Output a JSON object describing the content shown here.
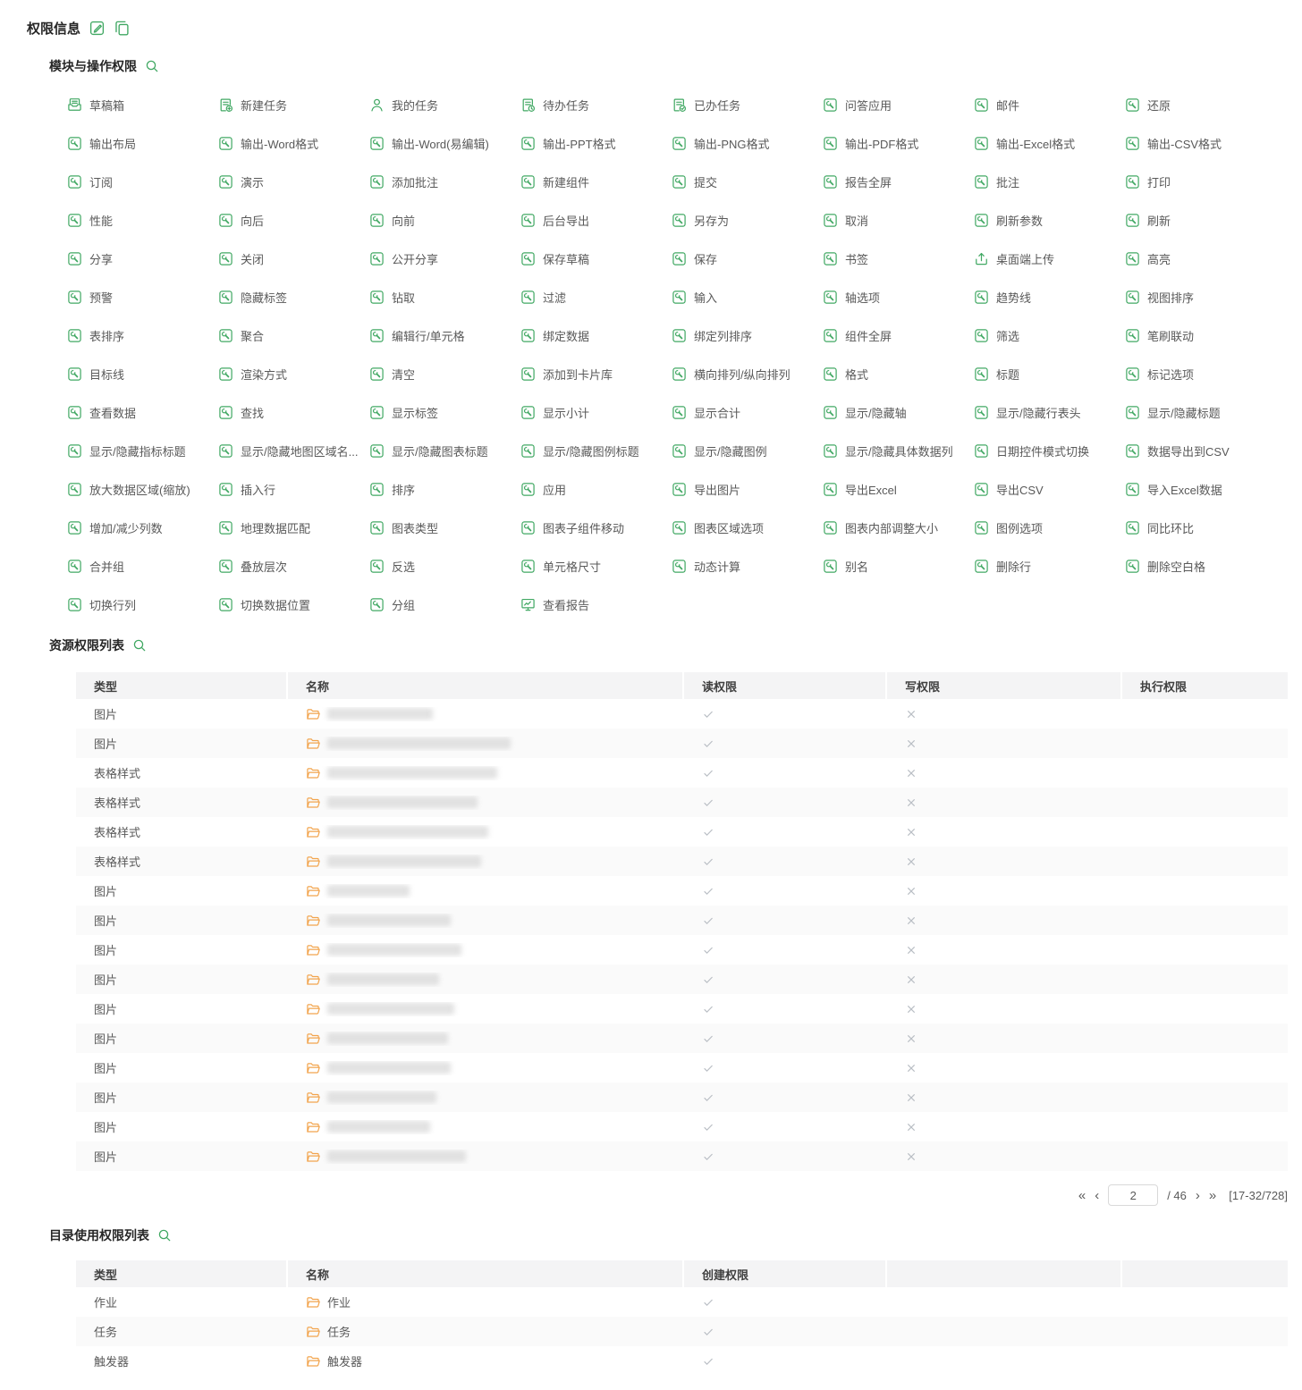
{
  "page": {
    "title": "权限信息"
  },
  "header_actions": {
    "edit": "edit-icon",
    "copy": "copy-icon"
  },
  "module_section": {
    "title": "模块与操作权限",
    "items": [
      {
        "label": "草稿箱",
        "icon": "draft-icon"
      },
      {
        "label": "新建任务",
        "icon": "new-task-icon"
      },
      {
        "label": "我的任务",
        "icon": "user-icon"
      },
      {
        "label": "待办任务",
        "icon": "todo-task-icon"
      },
      {
        "label": "已办任务",
        "icon": "done-task-icon"
      },
      {
        "label": "问答应用",
        "icon": "wrench-icon"
      },
      {
        "label": "邮件",
        "icon": "wrench-icon"
      },
      {
        "label": "还原",
        "icon": "wrench-icon"
      },
      {
        "label": "输出布局",
        "icon": "wrench-icon"
      },
      {
        "label": "输出-Word格式",
        "icon": "wrench-icon"
      },
      {
        "label": "输出-Word(易编辑)",
        "icon": "wrench-icon"
      },
      {
        "label": "输出-PPT格式",
        "icon": "wrench-icon"
      },
      {
        "label": "输出-PNG格式",
        "icon": "wrench-icon"
      },
      {
        "label": "输出-PDF格式",
        "icon": "wrench-icon"
      },
      {
        "label": "输出-Excel格式",
        "icon": "wrench-icon"
      },
      {
        "label": "输出-CSV格式",
        "icon": "wrench-icon"
      },
      {
        "label": "订阅",
        "icon": "wrench-icon"
      },
      {
        "label": "演示",
        "icon": "wrench-icon"
      },
      {
        "label": "添加批注",
        "icon": "wrench-icon"
      },
      {
        "label": "新建组件",
        "icon": "wrench-icon"
      },
      {
        "label": "提交",
        "icon": "wrench-icon"
      },
      {
        "label": "报告全屏",
        "icon": "wrench-icon"
      },
      {
        "label": "批注",
        "icon": "wrench-icon"
      },
      {
        "label": "打印",
        "icon": "wrench-icon"
      },
      {
        "label": "性能",
        "icon": "wrench-icon"
      },
      {
        "label": "向后",
        "icon": "wrench-icon"
      },
      {
        "label": "向前",
        "icon": "wrench-icon"
      },
      {
        "label": "后台导出",
        "icon": "wrench-icon"
      },
      {
        "label": "另存为",
        "icon": "wrench-icon"
      },
      {
        "label": "取消",
        "icon": "wrench-icon"
      },
      {
        "label": "刷新参数",
        "icon": "wrench-icon"
      },
      {
        "label": "刷新",
        "icon": "wrench-icon"
      },
      {
        "label": "分享",
        "icon": "wrench-icon"
      },
      {
        "label": "关闭",
        "icon": "wrench-icon"
      },
      {
        "label": "公开分享",
        "icon": "wrench-icon"
      },
      {
        "label": "保存草稿",
        "icon": "wrench-icon"
      },
      {
        "label": "保存",
        "icon": "wrench-icon"
      },
      {
        "label": "书签",
        "icon": "wrench-icon"
      },
      {
        "label": "桌面端上传",
        "icon": "upload-icon"
      },
      {
        "label": "高亮",
        "icon": "wrench-icon"
      },
      {
        "label": "预警",
        "icon": "wrench-icon"
      },
      {
        "label": "隐藏标签",
        "icon": "wrench-icon"
      },
      {
        "label": "钻取",
        "icon": "wrench-icon"
      },
      {
        "label": "过滤",
        "icon": "wrench-icon"
      },
      {
        "label": "输入",
        "icon": "wrench-icon"
      },
      {
        "label": "轴选项",
        "icon": "wrench-icon"
      },
      {
        "label": "趋势线",
        "icon": "wrench-icon"
      },
      {
        "label": "视图排序",
        "icon": "wrench-icon"
      },
      {
        "label": "表排序",
        "icon": "wrench-icon"
      },
      {
        "label": "聚合",
        "icon": "wrench-icon"
      },
      {
        "label": "编辑行/单元格",
        "icon": "wrench-icon"
      },
      {
        "label": "绑定数据",
        "icon": "wrench-icon"
      },
      {
        "label": "绑定列排序",
        "icon": "wrench-icon"
      },
      {
        "label": "组件全屏",
        "icon": "wrench-icon"
      },
      {
        "label": "筛选",
        "icon": "wrench-icon"
      },
      {
        "label": "笔刷联动",
        "icon": "wrench-icon"
      },
      {
        "label": "目标线",
        "icon": "wrench-icon"
      },
      {
        "label": "渲染方式",
        "icon": "wrench-icon"
      },
      {
        "label": "清空",
        "icon": "wrench-icon"
      },
      {
        "label": "添加到卡片库",
        "icon": "wrench-icon"
      },
      {
        "label": "横向排列/纵向排列",
        "icon": "wrench-icon"
      },
      {
        "label": "格式",
        "icon": "wrench-icon"
      },
      {
        "label": "标题",
        "icon": "wrench-icon"
      },
      {
        "label": "标记选项",
        "icon": "wrench-icon"
      },
      {
        "label": "查看数据",
        "icon": "wrench-icon"
      },
      {
        "label": "查找",
        "icon": "wrench-icon"
      },
      {
        "label": "显示标签",
        "icon": "wrench-icon"
      },
      {
        "label": "显示小计",
        "icon": "wrench-icon"
      },
      {
        "label": "显示合计",
        "icon": "wrench-icon"
      },
      {
        "label": "显示/隐藏轴",
        "icon": "wrench-icon"
      },
      {
        "label": "显示/隐藏行表头",
        "icon": "wrench-icon"
      },
      {
        "label": "显示/隐藏标题",
        "icon": "wrench-icon"
      },
      {
        "label": "显示/隐藏指标标题",
        "icon": "wrench-icon"
      },
      {
        "label": "显示/隐藏地图区域名...",
        "icon": "wrench-icon"
      },
      {
        "label": "显示/隐藏图表标题",
        "icon": "wrench-icon"
      },
      {
        "label": "显示/隐藏图例标题",
        "icon": "wrench-icon"
      },
      {
        "label": "显示/隐藏图例",
        "icon": "wrench-icon"
      },
      {
        "label": "显示/隐藏具体数据列",
        "icon": "wrench-icon"
      },
      {
        "label": "日期控件模式切换",
        "icon": "wrench-icon"
      },
      {
        "label": "数据导出到CSV",
        "icon": "wrench-icon"
      },
      {
        "label": "放大数据区域(缩放)",
        "icon": "wrench-icon"
      },
      {
        "label": "插入行",
        "icon": "wrench-icon"
      },
      {
        "label": "排序",
        "icon": "wrench-icon"
      },
      {
        "label": "应用",
        "icon": "wrench-icon"
      },
      {
        "label": "导出图片",
        "icon": "wrench-icon"
      },
      {
        "label": "导出Excel",
        "icon": "wrench-icon"
      },
      {
        "label": "导出CSV",
        "icon": "wrench-icon"
      },
      {
        "label": "导入Excel数据",
        "icon": "wrench-icon"
      },
      {
        "label": "增加/减少列数",
        "icon": "wrench-icon"
      },
      {
        "label": "地理数据匹配",
        "icon": "wrench-icon"
      },
      {
        "label": "图表类型",
        "icon": "wrench-icon"
      },
      {
        "label": "图表子组件移动",
        "icon": "wrench-icon"
      },
      {
        "label": "图表区域选项",
        "icon": "wrench-icon"
      },
      {
        "label": "图表内部调整大小",
        "icon": "wrench-icon"
      },
      {
        "label": "图例选项",
        "icon": "wrench-icon"
      },
      {
        "label": "同比环比",
        "icon": "wrench-icon"
      },
      {
        "label": "合并组",
        "icon": "wrench-icon"
      },
      {
        "label": "叠放层次",
        "icon": "wrench-icon"
      },
      {
        "label": "反选",
        "icon": "wrench-icon"
      },
      {
        "label": "单元格尺寸",
        "icon": "wrench-icon"
      },
      {
        "label": "动态计算",
        "icon": "wrench-icon"
      },
      {
        "label": "别名",
        "icon": "wrench-icon"
      },
      {
        "label": "删除行",
        "icon": "wrench-icon"
      },
      {
        "label": "删除空白格",
        "icon": "wrench-icon"
      },
      {
        "label": "切换行列",
        "icon": "wrench-icon"
      },
      {
        "label": "切换数据位置",
        "icon": "wrench-icon"
      },
      {
        "label": "分组",
        "icon": "wrench-icon"
      },
      {
        "label": "查看报告",
        "icon": "report-icon"
      }
    ]
  },
  "resource_section": {
    "title": "资源权限列表",
    "headers": [
      "类型",
      "名称",
      "读权限",
      "写权限",
      "执行权限"
    ],
    "rows": [
      {
        "type": "图片",
        "name_redacted": true,
        "blur_width": 118,
        "read": "yes",
        "write": "no",
        "execute": ""
      },
      {
        "type": "图片",
        "name_redacted": true,
        "blur_width": 205,
        "read": "yes",
        "write": "no",
        "execute": ""
      },
      {
        "type": "表格样式",
        "name_redacted": true,
        "blur_width": 190,
        "read": "yes",
        "write": "no",
        "execute": ""
      },
      {
        "type": "表格样式",
        "name_redacted": true,
        "blur_width": 168,
        "read": "yes",
        "write": "no",
        "execute": ""
      },
      {
        "type": "表格样式",
        "name_redacted": true,
        "blur_width": 180,
        "read": "yes",
        "write": "no",
        "execute": ""
      },
      {
        "type": "表格样式",
        "name_redacted": true,
        "blur_width": 172,
        "read": "yes",
        "write": "no",
        "execute": ""
      },
      {
        "type": "图片",
        "name_redacted": true,
        "blur_width": 92,
        "read": "yes",
        "write": "no",
        "execute": ""
      },
      {
        "type": "图片",
        "name_redacted": true,
        "blur_width": 138,
        "read": "yes",
        "write": "no",
        "execute": ""
      },
      {
        "type": "图片",
        "name_redacted": true,
        "blur_width": 150,
        "read": "yes",
        "write": "no",
        "execute": ""
      },
      {
        "type": "图片",
        "name_redacted": true,
        "blur_width": 125,
        "read": "yes",
        "write": "no",
        "execute": ""
      },
      {
        "type": "图片",
        "name_redacted": true,
        "blur_width": 142,
        "read": "yes",
        "write": "no",
        "execute": ""
      },
      {
        "type": "图片",
        "name_redacted": true,
        "blur_width": 135,
        "read": "yes",
        "write": "no",
        "execute": ""
      },
      {
        "type": "图片",
        "name_redacted": true,
        "blur_width": 138,
        "read": "yes",
        "write": "no",
        "execute": ""
      },
      {
        "type": "图片",
        "name_redacted": true,
        "blur_width": 122,
        "read": "yes",
        "write": "no",
        "execute": ""
      },
      {
        "type": "图片",
        "name_redacted": true,
        "blur_width": 115,
        "read": "yes",
        "write": "no",
        "execute": ""
      },
      {
        "type": "图片",
        "name_redacted": true,
        "blur_width": 155,
        "read": "yes",
        "write": "no",
        "execute": ""
      }
    ],
    "pagination": {
      "first": "«",
      "prev": "‹",
      "page_value": "2",
      "total": "/ 46",
      "next": "›",
      "last": "»",
      "range": "[17-32/728]"
    }
  },
  "directory_section": {
    "title": "目录使用权限列表",
    "headers": [
      "类型",
      "名称",
      "创建权限"
    ],
    "rows": [
      {
        "type": "作业",
        "name": "作业",
        "create": "yes"
      },
      {
        "type": "任务",
        "name": "任务",
        "create": "yes"
      },
      {
        "type": "触发器",
        "name": "触发器",
        "create": "yes"
      }
    ]
  }
}
